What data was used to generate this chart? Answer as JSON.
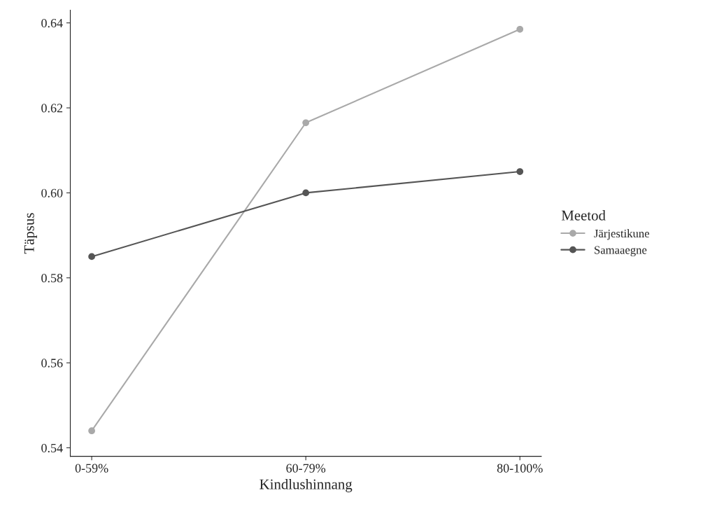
{
  "chart_data": {
    "type": "line",
    "xlabel": "Kindlushinnang",
    "ylabel": "Täpsus",
    "legend_title": "Meetod",
    "categories": [
      "0-59%",
      "60-79%",
      "80-100%"
    ],
    "series": [
      {
        "name": "Järjestikune",
        "color": "#a9a9a9",
        "values": [
          0.544,
          0.6165,
          0.6385
        ]
      },
      {
        "name": "Samaaegne",
        "color": "#555555",
        "values": [
          0.585,
          0.6,
          0.605
        ]
      }
    ],
    "ylim": [
      0.538,
      0.643
    ],
    "yticks": [
      0.54,
      0.56,
      0.58,
      {
        "value": 0.6,
        "label": "0.60"
      },
      0.62,
      0.64
    ],
    "marker": "circle",
    "line_style": "solid",
    "legend": "right",
    "grid": false
  }
}
